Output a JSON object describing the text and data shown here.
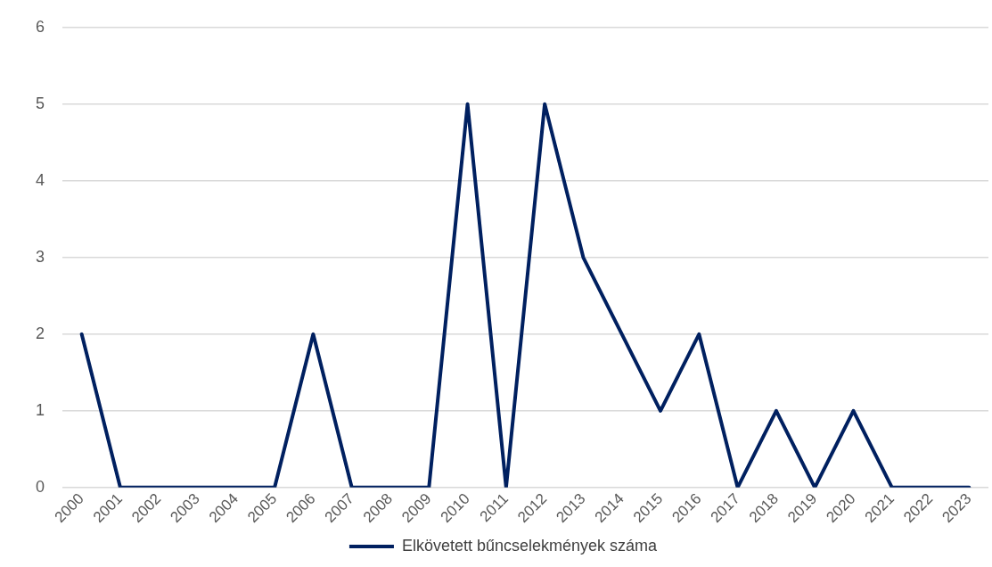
{
  "chart_data": {
    "type": "line",
    "categories": [
      "2000",
      "2001",
      "2002",
      "2003",
      "2004",
      "2005",
      "2006",
      "2007",
      "2008",
      "2009",
      "2010",
      "2011",
      "2012",
      "2013",
      "2014",
      "2015",
      "2016",
      "2017",
      "2018",
      "2019",
      "2020",
      "2021",
      "2022",
      "2023"
    ],
    "series": [
      {
        "name": "Elkövetett bűncselekmények száma",
        "color": "#002060",
        "values": [
          2,
          0,
          0,
          0,
          0,
          0,
          2,
          0,
          0,
          0,
          5,
          0,
          5,
          3,
          2,
          1,
          2,
          0,
          1,
          0,
          1,
          0,
          0,
          0
        ]
      }
    ],
    "ylim": [
      0,
      6
    ],
    "yticks": [
      0,
      1,
      2,
      3,
      4,
      5,
      6
    ],
    "grid": "y",
    "legend": "bottom",
    "marker": "none",
    "line_style": "solid"
  }
}
